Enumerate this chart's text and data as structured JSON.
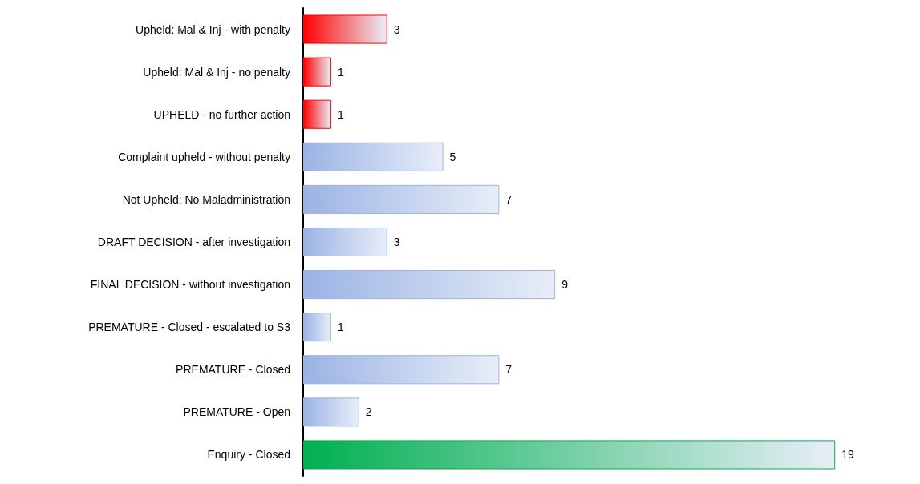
{
  "chart_data": {
    "type": "bar",
    "orientation": "horizontal",
    "categories": [
      "Upheld: Mal & Inj - with penalty",
      "Upheld: Mal & Inj - no penalty",
      "UPHELD - no further action",
      "Complaint upheld - without penalty",
      "Not Upheld: No Maladministration",
      "DRAFT DECISION - after investigation",
      "FINAL DECISION - without investigation",
      "PREMATURE - Closed - escalated to S3",
      "PREMATURE - Closed",
      "PREMATURE - Open",
      "Enquiry - Closed"
    ],
    "values": [
      3,
      1,
      1,
      5,
      7,
      3,
      9,
      1,
      7,
      2,
      19
    ],
    "colors": [
      "#ff0000",
      "#ff0000",
      "#ff0000",
      "#9bb3e4",
      "#9bb3e4",
      "#9bb3e4",
      "#9bb3e4",
      "#9bb3e4",
      "#9bb3e4",
      "#9bb3e4",
      "#00b050"
    ],
    "data_labels": true
  }
}
